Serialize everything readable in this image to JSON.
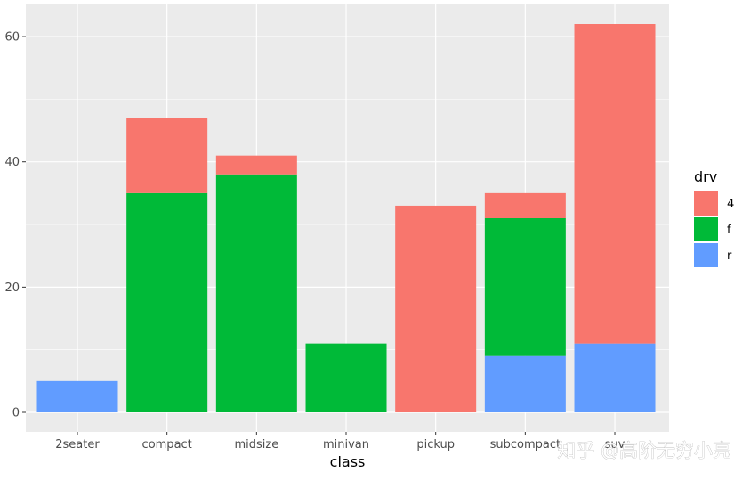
{
  "chart_data": {
    "type": "bar",
    "stacked": true,
    "categories": [
      "2seater",
      "compact",
      "midsize",
      "minivan",
      "pickup",
      "subcompact",
      "suv"
    ],
    "series": [
      {
        "name": "4",
        "values": [
          0,
          12,
          3,
          0,
          33,
          4,
          51
        ],
        "color": "#F8766D"
      },
      {
        "name": "f",
        "values": [
          0,
          35,
          38,
          11,
          0,
          22,
          0
        ],
        "color": "#00BA38"
      },
      {
        "name": "r",
        "values": [
          5,
          0,
          0,
          0,
          0,
          9,
          11
        ],
        "color": "#619CFF"
      }
    ],
    "title": "",
    "xlabel": "class",
    "ylabel": "",
    "ylim": [
      0,
      62
    ],
    "yticks": [
      0,
      20,
      40,
      60
    ],
    "grid": true,
    "legend": {
      "title": "drv",
      "position": "right"
    },
    "panel_background": "#EBEBEB",
    "grid_color": "#FFFFFF"
  },
  "watermark": "知乎 @高阶无穷小亮"
}
